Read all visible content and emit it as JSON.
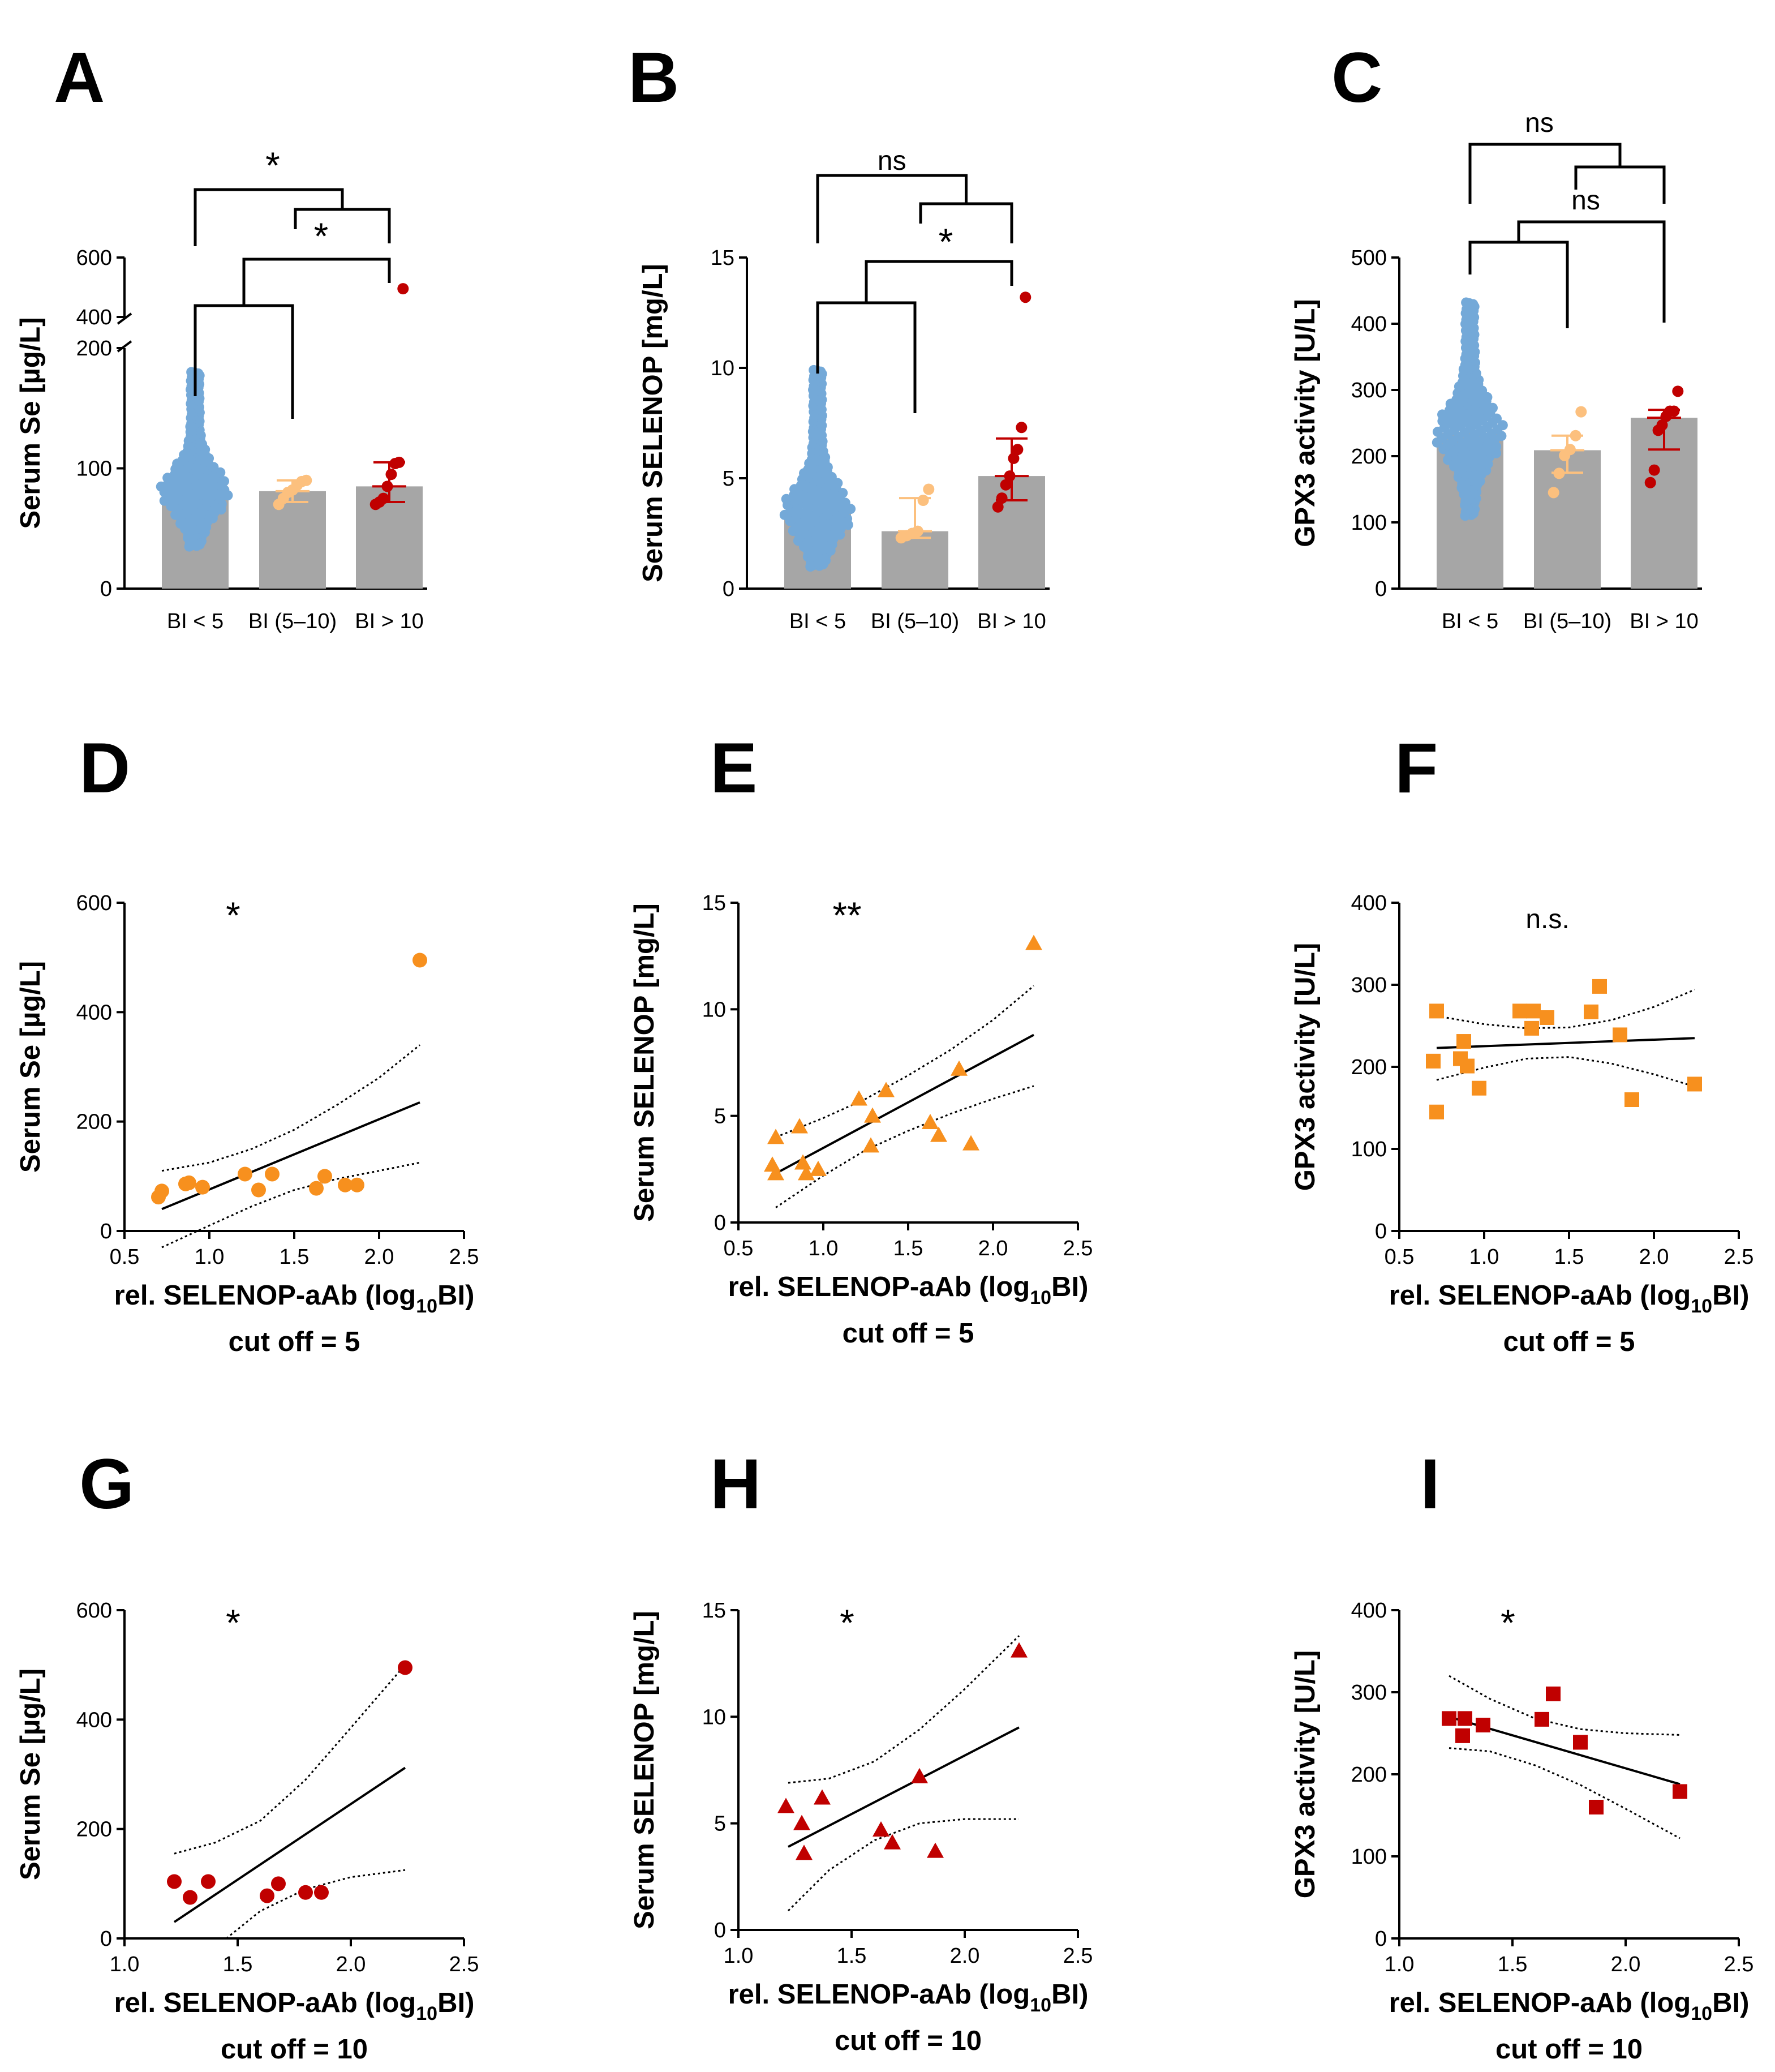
{
  "figure": {
    "panels": [
      "A",
      "B",
      "C",
      "D",
      "E",
      "F",
      "G",
      "H",
      "I"
    ],
    "x_label_prefix": "rel. SELENOP-aAb (log",
    "x_label_subscript": "10",
    "x_label_suffix": "BI)",
    "cutoff_5": "cut off = 5",
    "cutoff_10": "cut off = 10"
  },
  "colors": {
    "bar": "#a6a6a6",
    "group_low": "#74a9d8",
    "group_mid": "#fcc07e",
    "group_high": "#c00000",
    "corr_mid": "#f7901e",
    "corr_high": "#c00000"
  },
  "chart_data": [
    {
      "panel": "A",
      "type": "bar",
      "title": "",
      "ylabel": "Serum Se [µg/L]",
      "categories": [
        "BI < 5",
        "BI (5–10)",
        "BI > 10"
      ],
      "values": [
        81,
        81,
        85
      ],
      "sd_low": [
        null,
        72,
        72
      ],
      "sd_high": [
        null,
        90,
        105
      ],
      "ylim": [
        0,
        600
      ],
      "axis_break": [
        200,
        400
      ],
      "yticks": [
        0,
        100,
        200,
        400,
        600
      ],
      "points_mid": [
        70,
        75,
        80,
        82,
        86,
        89,
        90
      ],
      "points_high": [
        70,
        72,
        75,
        85,
        95,
        104,
        105,
        495
      ],
      "significance": [
        {
          "between": [
            "BI < 5",
            "BI > 10"
          ],
          "label": "*"
        },
        {
          "between": [
            "BI (5–10)",
            "BI > 10"
          ],
          "label": ""
        },
        {
          "between": [
            "BI < 5",
            "BI (5–10)"
          ],
          "label": ""
        },
        {
          "between": [
            "BI (5–10)",
            "BI > 10"
          ],
          "label": "*"
        }
      ]
    },
    {
      "panel": "B",
      "type": "bar",
      "title": "",
      "ylabel": "Serum SELENOP [mg/L]",
      "categories": [
        "BI < 5",
        "BI (5–10)",
        "BI > 10"
      ],
      "values": [
        3.5,
        2.6,
        5.1
      ],
      "sd_low": [
        null,
        2.3,
        4.0
      ],
      "sd_high": [
        null,
        4.1,
        6.8
      ],
      "ylim": [
        0,
        15
      ],
      "yticks": [
        0,
        5,
        10,
        15
      ],
      "points_mid": [
        2.3,
        2.4,
        2.5,
        2.6,
        4.0,
        4.5
      ],
      "points_high": [
        3.7,
        4.1,
        4.7,
        5.1,
        5.9,
        6.3,
        7.3,
        13.2
      ],
      "significance": [
        {
          "between": [
            "BI < 5",
            "BI > 10"
          ],
          "label": "ns"
        },
        {
          "between": [
            "BI < 5",
            "BI > 10"
          ],
          "label": "*"
        }
      ]
    },
    {
      "panel": "C",
      "type": "bar",
      "title": "",
      "ylabel": "GPX3 activity [U/L]",
      "categories": [
        "BI < 5",
        "BI (5–10)",
        "BI > 10"
      ],
      "values": [
        235,
        209,
        258
      ],
      "sd_low": [
        null,
        175,
        210
      ],
      "sd_high": [
        null,
        231,
        270
      ],
      "ylim": [
        0,
        500
      ],
      "yticks": [
        0,
        100,
        200,
        300,
        400,
        500
      ],
      "points_mid": [
        145,
        174,
        201,
        210,
        231,
        267
      ],
      "points_high": [
        160,
        179,
        239,
        247,
        260,
        268,
        268,
        298
      ],
      "significance": [
        {
          "between": [
            "BI < 5",
            "BI > 10"
          ],
          "label": "ns"
        },
        {
          "between": [
            "BI < 5",
            "BI > 10"
          ],
          "label": "ns"
        }
      ]
    },
    {
      "panel": "D",
      "type": "scatter",
      "ylabel": "Serum Se [µg/L]",
      "marker": "circle",
      "significance": "*",
      "xlim": [
        0.5,
        2.5
      ],
      "ylim": [
        0,
        600
      ],
      "xticks": [
        0.5,
        1.0,
        1.5,
        2.0,
        2.5
      ],
      "yticks": [
        0,
        200,
        400,
        600
      ],
      "x": [
        0.7,
        0.72,
        0.86,
        0.88,
        0.96,
        1.21,
        1.29,
        1.37,
        1.63,
        1.68,
        1.8,
        1.87,
        2.24
      ],
      "y": [
        62,
        73,
        86,
        88,
        80,
        104,
        75,
        104,
        78,
        100,
        84,
        84,
        495
      ],
      "fit": [
        [
          0.72,
          40
        ],
        [
          2.24,
          235
        ]
      ],
      "ci_upper": [
        [
          0.72,
          110
        ],
        [
          1.0,
          125
        ],
        [
          1.25,
          150
        ],
        [
          1.5,
          185
        ],
        [
          1.75,
          230
        ],
        [
          2.0,
          280
        ],
        [
          2.24,
          340
        ]
      ],
      "ci_lower": [
        [
          0.72,
          -30
        ],
        [
          1.0,
          10
        ],
        [
          1.25,
          45
        ],
        [
          1.5,
          75
        ],
        [
          1.75,
          95
        ],
        [
          2.0,
          110
        ],
        [
          2.24,
          125
        ]
      ]
    },
    {
      "panel": "E",
      "type": "scatter",
      "ylabel": "Serum SELENOP [mg/L]",
      "marker": "triangle",
      "significance": "**",
      "xlim": [
        0.5,
        2.5
      ],
      "ylim": [
        0,
        15
      ],
      "xticks": [
        0.5,
        1.0,
        1.5,
        2.0,
        2.5
      ],
      "yticks": [
        0,
        5,
        10,
        15
      ],
      "x": [
        0.7,
        0.72,
        0.72,
        0.86,
        0.88,
        0.9,
        0.97,
        1.21,
        1.28,
        1.29,
        1.37,
        1.63,
        1.68,
        1.8,
        1.87,
        2.24
      ],
      "y": [
        2.7,
        2.3,
        4.0,
        4.5,
        2.8,
        2.3,
        2.5,
        5.8,
        3.6,
        5.0,
        6.2,
        4.7,
        4.1,
        7.2,
        3.7,
        13.1
      ],
      "fit": [
        [
          0.72,
          2.3
        ],
        [
          2.24,
          8.8
        ]
      ],
      "ci_upper": [
        [
          0.72,
          4.0
        ],
        [
          1.0,
          4.9
        ],
        [
          1.25,
          5.8
        ],
        [
          1.5,
          6.9
        ],
        [
          1.75,
          8.1
        ],
        [
          2.0,
          9.5
        ],
        [
          2.24,
          11.1
        ]
      ],
      "ci_lower": [
        [
          0.72,
          0.7
        ],
        [
          1.0,
          2.2
        ],
        [
          1.25,
          3.4
        ],
        [
          1.5,
          4.3
        ],
        [
          1.75,
          5.1
        ],
        [
          2.0,
          5.8
        ],
        [
          2.24,
          6.4
        ]
      ]
    },
    {
      "panel": "F",
      "type": "scatter",
      "ylabel": "GPX3 activity [U/L]",
      "marker": "square",
      "significance": "n.s.",
      "xlim": [
        0.5,
        2.5
      ],
      "ylim": [
        0,
        400
      ],
      "xticks": [
        0.5,
        1.0,
        1.5,
        2.0,
        2.5
      ],
      "yticks": [
        0,
        100,
        200,
        300,
        400
      ],
      "x": [
        0.7,
        0.72,
        0.72,
        0.86,
        0.88,
        0.9,
        0.97,
        1.21,
        1.28,
        1.29,
        1.37,
        1.63,
        1.68,
        1.8,
        1.87,
        2.24
      ],
      "y": [
        207,
        145,
        268,
        210,
        231,
        201,
        174,
        268,
        247,
        268,
        260,
        267,
        298,
        239,
        160,
        179
      ],
      "fit": [
        [
          0.72,
          223
        ],
        [
          2.24,
          235
        ]
      ],
      "ci_upper": [
        [
          0.72,
          262
        ],
        [
          1.0,
          252
        ],
        [
          1.25,
          247
        ],
        [
          1.5,
          248
        ],
        [
          1.75,
          257
        ],
        [
          2.0,
          273
        ],
        [
          2.24,
          294
        ]
      ],
      "ci_lower": [
        [
          0.72,
          184
        ],
        [
          1.0,
          199
        ],
        [
          1.25,
          210
        ],
        [
          1.5,
          212
        ],
        [
          1.75,
          204
        ],
        [
          2.0,
          191
        ],
        [
          2.24,
          176
        ]
      ]
    },
    {
      "panel": "G",
      "type": "scatter",
      "ylabel": "Serum Se [µg/L]",
      "marker": "circle",
      "significance": "*",
      "xlim": [
        1.0,
        2.5
      ],
      "ylim": [
        0,
        600
      ],
      "xticks": [
        1.0,
        1.5,
        2.0,
        2.5
      ],
      "yticks": [
        0,
        200,
        400,
        600
      ],
      "x": [
        1.22,
        1.29,
        1.37,
        1.63,
        1.68,
        1.8,
        1.87,
        2.24
      ],
      "y": [
        104,
        75,
        104,
        78,
        100,
        84,
        84,
        495
      ],
      "fit": [
        [
          1.22,
          30
        ],
        [
          2.24,
          312
        ]
      ],
      "ci_upper": [
        [
          1.22,
          155
        ],
        [
          1.4,
          175
        ],
        [
          1.6,
          215
        ],
        [
          1.8,
          290
        ],
        [
          2.0,
          385
        ],
        [
          2.24,
          500
        ]
      ],
      "ci_lower": [
        [
          1.45,
          0
        ],
        [
          1.6,
          50
        ],
        [
          1.8,
          90
        ],
        [
          2.0,
          112
        ],
        [
          2.24,
          125
        ]
      ]
    },
    {
      "panel": "H",
      "type": "scatter",
      "ylabel": "Serum SELENOP [mg/L]",
      "marker": "triangle",
      "significance": "*",
      "xlim": [
        1.0,
        2.5
      ],
      "ylim": [
        0,
        15
      ],
      "xticks": [
        1.0,
        1.5,
        2.0,
        2.5
      ],
      "yticks": [
        0,
        5,
        10,
        15
      ],
      "x": [
        1.21,
        1.28,
        1.29,
        1.37,
        1.63,
        1.68,
        1.8,
        1.87,
        2.24
      ],
      "y": [
        5.8,
        5.0,
        3.6,
        6.2,
        4.7,
        4.1,
        7.2,
        3.7,
        13.1
      ],
      "fit": [
        [
          1.22,
          3.9
        ],
        [
          2.24,
          9.5
        ]
      ],
      "ci_upper": [
        [
          1.22,
          6.9
        ],
        [
          1.4,
          7.1
        ],
        [
          1.6,
          7.9
        ],
        [
          1.8,
          9.4
        ],
        [
          2.0,
          11.3
        ],
        [
          2.24,
          13.8
        ]
      ],
      "ci_lower": [
        [
          1.22,
          0.9
        ],
        [
          1.4,
          2.8
        ],
        [
          1.6,
          4.2
        ],
        [
          1.8,
          5.0
        ],
        [
          2.0,
          5.2
        ],
        [
          2.24,
          5.2
        ]
      ]
    },
    {
      "panel": "I",
      "type": "scatter",
      "ylabel": "GPX3 activity [U/L]",
      "marker": "square",
      "significance": "*",
      "xlim": [
        1.0,
        2.5
      ],
      "ylim": [
        0,
        400
      ],
      "xticks": [
        1.0,
        1.5,
        2.0,
        2.5
      ],
      "yticks": [
        0,
        100,
        200,
        300,
        400
      ],
      "x": [
        1.22,
        1.28,
        1.29,
        1.37,
        1.63,
        1.68,
        1.8,
        1.87,
        2.24
      ],
      "y": [
        268,
        247,
        268,
        260,
        267,
        298,
        239,
        160,
        179
      ],
      "fit": [
        [
          1.22,
          270
        ],
        [
          2.24,
          188
        ]
      ],
      "ci_upper": [
        [
          1.22,
          320
        ],
        [
          1.4,
          292
        ],
        [
          1.6,
          268
        ],
        [
          1.8,
          255
        ],
        [
          2.0,
          250
        ],
        [
          2.24,
          248
        ]
      ],
      "ci_lower": [
        [
          1.22,
          232
        ],
        [
          1.4,
          228
        ],
        [
          1.6,
          211
        ],
        [
          1.8,
          187
        ],
        [
          2.0,
          158
        ],
        [
          2.24,
          122
        ]
      ]
    }
  ]
}
